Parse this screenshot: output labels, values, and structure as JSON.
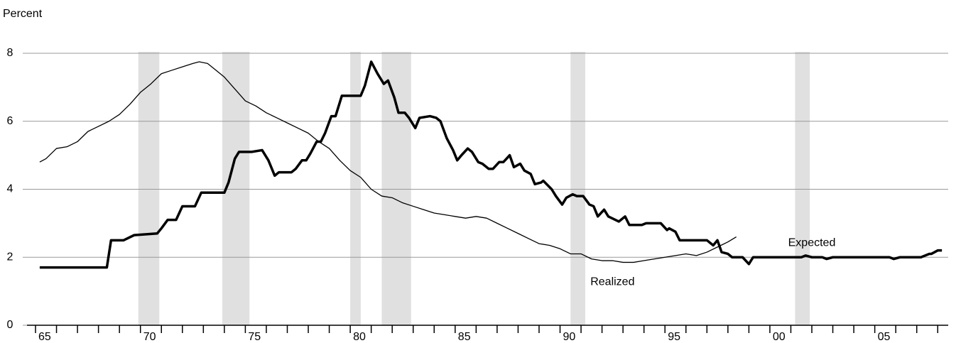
{
  "chart_data": {
    "type": "line",
    "y_axis_label": "Percent",
    "xlim": [
      1965,
      2008.5
    ],
    "ylim": [
      0,
      8
    ],
    "yticks": [
      0,
      2,
      4,
      6,
      8
    ],
    "xticks": [
      {
        "value": 1965,
        "label": "65"
      },
      {
        "value": 1970,
        "label": "70"
      },
      {
        "value": 1975,
        "label": "75"
      },
      {
        "value": 1980,
        "label": "80"
      },
      {
        "value": 1985,
        "label": "85"
      },
      {
        "value": 1990,
        "label": "90"
      },
      {
        "value": 1995,
        "label": "95"
      },
      {
        "value": 2000,
        "label": "00"
      },
      {
        "value": 2005,
        "label": "05"
      }
    ],
    "xminorticks": [
      1966,
      1967,
      1968,
      1969,
      1971,
      1972,
      1973,
      1974,
      1976,
      1977,
      1978,
      1979,
      1981,
      1982,
      1983,
      1984,
      1986,
      1987,
      1988,
      1989,
      1991,
      1992,
      1993,
      1994,
      1996,
      1997,
      1998,
      1999,
      2001,
      2002,
      2003,
      2004,
      2006,
      2007,
      2008
    ],
    "grid": true,
    "shaded_periods": [
      [
        1969.9,
        1970.9
      ],
      [
        1973.9,
        1975.2
      ],
      [
        1980.0,
        1980.5
      ],
      [
        1981.5,
        1982.9
      ],
      [
        1990.5,
        1991.2
      ],
      [
        2001.2,
        2001.9
      ]
    ],
    "shade_color": "#e0e0e0",
    "series": [
      {
        "name": "Realized",
        "color": "#000000",
        "line_width": 1.3,
        "x": [
          1965.2,
          1965.5,
          1966,
          1966.5,
          1967,
          1967.5,
          1968,
          1968.5,
          1969,
          1969.5,
          1970,
          1970.5,
          1971,
          1971.5,
          1972,
          1972.5,
          1972.8,
          1973.2,
          1973.5,
          1974,
          1974.5,
          1975,
          1975.5,
          1976,
          1976.5,
          1977,
          1977.5,
          1978,
          1978.5,
          1979,
          1979.5,
          1980,
          1980.5,
          1981,
          1981.5,
          1982,
          1982.5,
          1983,
          1983.5,
          1984,
          1984.5,
          1985,
          1985.5,
          1986,
          1986.5,
          1987,
          1987.5,
          1988,
          1988.5,
          1989,
          1989.5,
          1990,
          1990.5,
          1991,
          1991.5,
          1992,
          1992.5,
          1993,
          1993.5,
          1994,
          1994.5,
          1995,
          1995.5,
          1996,
          1996.5,
          1997,
          1997.5,
          1998,
          1998.4
        ],
        "values": [
          4.8,
          4.9,
          5.2,
          5.25,
          5.4,
          5.7,
          5.85,
          6.0,
          6.2,
          6.5,
          6.85,
          7.1,
          7.4,
          7.5,
          7.6,
          7.7,
          7.75,
          7.7,
          7.55,
          7.3,
          6.95,
          6.6,
          6.45,
          6.25,
          6.1,
          5.95,
          5.8,
          5.65,
          5.4,
          5.2,
          4.85,
          4.55,
          4.35,
          4.0,
          3.8,
          3.75,
          3.6,
          3.5,
          3.4,
          3.3,
          3.25,
          3.2,
          3.15,
          3.2,
          3.15,
          3.0,
          2.85,
          2.7,
          2.55,
          2.4,
          2.35,
          2.25,
          2.1,
          2.1,
          1.95,
          1.9,
          1.9,
          1.85,
          1.85,
          1.9,
          1.95,
          2.0,
          2.05,
          2.1,
          2.05,
          2.15,
          2.3,
          2.45,
          2.6
        ]
      },
      {
        "name": "Expected",
        "color": "#000000",
        "line_width": 3.5,
        "x": [
          1965.2,
          1968.4,
          1968.6,
          1969.2,
          1969.7,
          1970.8,
          1971.0,
          1971.3,
          1971.7,
          1972.0,
          1972.6,
          1972.9,
          1974.0,
          1974.2,
          1974.5,
          1974.7,
          1975.3,
          1975.8,
          1976.1,
          1976.4,
          1976.6,
          1977.2,
          1977.4,
          1977.7,
          1977.9,
          1978.1,
          1978.4,
          1978.6,
          1978.8,
          1979.1,
          1979.3,
          1979.6,
          1980.5,
          1980.7,
          1981.0,
          1981.3,
          1981.6,
          1981.8,
          1982.1,
          1982.3,
          1982.6,
          1982.8,
          1983.1,
          1983.3,
          1983.8,
          1984.1,
          1984.3,
          1984.6,
          1984.9,
          1985.1,
          1985.3,
          1985.6,
          1985.8,
          1986.1,
          1986.3,
          1986.6,
          1986.8,
          1987.1,
          1987.3,
          1987.6,
          1987.8,
          1988.1,
          1988.3,
          1988.6,
          1988.8,
          1989.1,
          1989.2,
          1989.6,
          1989.8,
          1990.1,
          1990.3,
          1990.6,
          1990.8,
          1991.1,
          1991.4,
          1991.6,
          1991.8,
          1992.1,
          1992.3,
          1992.8,
          1993.1,
          1993.3,
          1993.9,
          1994.1,
          1994.8,
          1995.1,
          1995.2,
          1995.5,
          1995.7,
          1997.0,
          1997.3,
          1997.5,
          1997.7,
          1998.0,
          1998.2,
          1998.7,
          1999.0,
          1999.2,
          2001.5,
          2001.7,
          2002.0,
          2002.5,
          2002.7,
          2003.0,
          2005.7,
          2005.9,
          2006.2,
          2007.2,
          2007.6,
          2007.7,
          2008.0,
          2008.2
        ],
        "values": [
          1.7,
          1.7,
          2.5,
          2.5,
          2.65,
          2.7,
          2.85,
          3.1,
          3.1,
          3.5,
          3.5,
          3.9,
          3.9,
          4.2,
          4.9,
          5.1,
          5.1,
          5.15,
          4.85,
          4.4,
          4.5,
          4.5,
          4.6,
          4.85,
          4.85,
          5.05,
          5.4,
          5.4,
          5.65,
          6.15,
          6.15,
          6.75,
          6.75,
          7.05,
          7.75,
          7.4,
          7.1,
          7.2,
          6.7,
          6.25,
          6.25,
          6.1,
          5.8,
          6.1,
          6.15,
          6.1,
          6.0,
          5.5,
          5.15,
          4.85,
          5.0,
          5.2,
          5.1,
          4.8,
          4.75,
          4.6,
          4.6,
          4.8,
          4.8,
          5.0,
          4.65,
          4.75,
          4.55,
          4.45,
          4.15,
          4.2,
          4.25,
          4.0,
          3.8,
          3.55,
          3.75,
          3.85,
          3.8,
          3.8,
          3.55,
          3.5,
          3.2,
          3.4,
          3.2,
          3.05,
          3.2,
          2.95,
          2.95,
          3.0,
          3.0,
          2.8,
          2.85,
          2.75,
          2.5,
          2.5,
          2.35,
          2.5,
          2.15,
          2.1,
          2.0,
          2.0,
          1.8,
          2.0,
          2.0,
          2.05,
          2.0,
          2.0,
          1.95,
          2.0,
          2.0,
          1.95,
          2.0,
          2.0,
          2.1,
          2.1,
          2.2,
          2.2
        ]
      }
    ],
    "series_label_positions": [
      "below",
      "above"
    ]
  }
}
